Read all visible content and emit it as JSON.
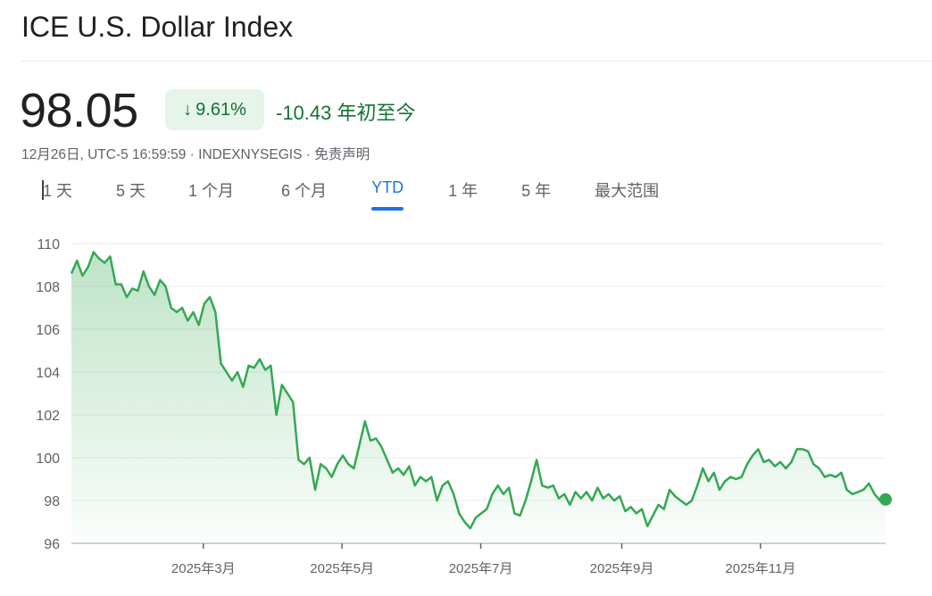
{
  "header": {
    "title": "ICE U.S. Dollar Index",
    "price": "98.05",
    "change_percent": "9.61%",
    "change_direction_icon": "arrow-down-icon",
    "change_value": "-10.43",
    "change_period": "年初至今",
    "meta": "12月26日, UTC-5 16:59:59 · INDEXNYSEGIS · 免责声明"
  },
  "tabs": [
    {
      "label": "1 天",
      "active": false
    },
    {
      "label": "5 天",
      "active": false
    },
    {
      "label": "1 个月",
      "active": false
    },
    {
      "label": "6 个月",
      "active": false
    },
    {
      "label": "YTD",
      "active": true
    },
    {
      "label": "1 年",
      "active": false
    },
    {
      "label": "5 年",
      "active": false
    },
    {
      "label": "最大范围",
      "active": false
    }
  ],
  "colors": {
    "line": "#34a853",
    "positive_text": "#137333",
    "badge_bg": "#e6f4ea",
    "accent": "#1a73e8"
  },
  "chart_data": {
    "type": "area",
    "x_range": [
      "2025-01-02",
      "2025-12-26"
    ],
    "ylim": [
      96,
      110
    ],
    "yticks": [
      96,
      98,
      100,
      102,
      104,
      106,
      108,
      110
    ],
    "xticks": [
      {
        "date": "2025-03-01",
        "label": "2025年3月"
      },
      {
        "date": "2025-05-01",
        "label": "2025年5月"
      },
      {
        "date": "2025-07-01",
        "label": "2025年7月"
      },
      {
        "date": "2025-09-01",
        "label": "2025年9月"
      },
      {
        "date": "2025-11-01",
        "label": "2025年11月"
      }
    ],
    "grid": true,
    "series": [
      {
        "values": [
          108.6,
          109.2,
          108.5,
          108.9,
          109.6,
          109.3,
          109.1,
          109.4,
          108.1,
          108.1,
          107.5,
          107.9,
          107.8,
          108.7,
          108.0,
          107.6,
          108.3,
          108.0,
          107.0,
          106.8,
          107.0,
          106.4,
          106.8,
          106.2,
          107.2,
          107.5,
          106.8,
          104.4,
          104.0,
          103.6,
          104.0,
          103.3,
          104.3,
          104.2,
          104.6,
          104.1,
          104.3,
          102.0,
          103.4,
          103.0,
          102.6,
          99.9,
          99.7,
          100.0,
          98.5,
          99.7,
          99.5,
          99.1,
          99.7,
          100.1,
          99.7,
          99.5,
          100.6,
          101.7,
          100.8,
          100.9,
          100.5,
          99.9,
          99.3,
          99.5,
          99.2,
          99.6,
          98.7,
          99.1,
          98.9,
          99.1,
          98.0,
          98.7,
          98.9,
          98.3,
          97.4,
          97.0,
          96.7,
          97.2,
          97.4,
          97.6,
          98.3,
          98.7,
          98.3,
          98.6,
          97.4,
          97.3,
          98.0,
          98.9,
          99.9,
          98.7,
          98.6,
          98.7,
          98.1,
          98.3,
          97.8,
          98.4,
          98.1,
          98.4,
          98.0,
          98.6,
          98.1,
          98.3,
          98.0,
          98.2,
          97.5,
          97.7,
          97.4,
          97.6,
          96.8,
          97.3,
          97.8,
          97.6,
          98.5,
          98.2,
          98.0,
          97.8,
          98.0,
          98.7,
          99.5,
          98.9,
          99.3,
          98.5,
          98.9,
          99.1,
          99.0,
          99.1,
          99.7,
          100.1,
          100.4,
          99.8,
          99.9,
          99.6,
          99.8,
          99.5,
          99.8,
          100.4,
          100.4,
          100.3,
          99.7,
          99.5,
          99.1,
          99.2,
          99.1,
          99.3,
          98.5,
          98.3,
          98.4,
          98.5,
          98.8,
          98.3,
          98.0,
          98.05
        ]
      }
    ],
    "last_value": 98.05
  }
}
